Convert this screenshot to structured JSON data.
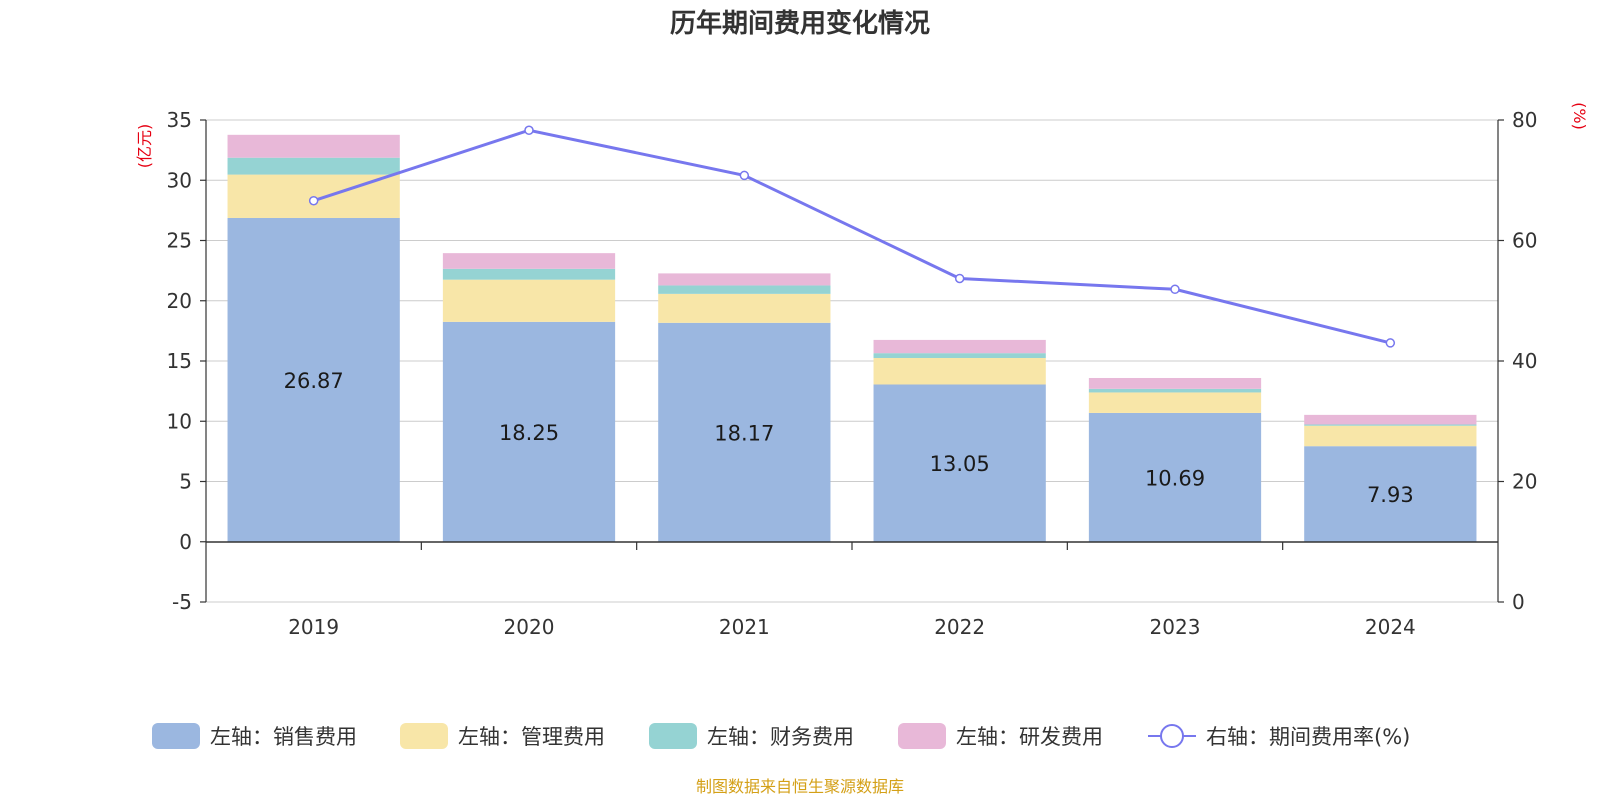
{
  "title": "历年期间费用变化情况",
  "source": "制图数据来自恒生聚源数据库",
  "chart_data": {
    "type": "bar",
    "stacked": true,
    "categories": [
      "2019",
      "2020",
      "2021",
      "2022",
      "2023",
      "2024"
    ],
    "left_axis": {
      "unit": "(亿元)",
      "min": -5,
      "max": 35,
      "ticks": [
        -5,
        0,
        5,
        10,
        15,
        20,
        25,
        30,
        35
      ]
    },
    "right_axis": {
      "unit": "(%)",
      "min": 0,
      "max": 80,
      "ticks": [
        0,
        20,
        40,
        60,
        80
      ]
    },
    "series": [
      {
        "name": "左轴：销售费用",
        "axis": "left",
        "kind": "bar",
        "color": "#9bb7e0",
        "values": [
          26.87,
          18.25,
          18.17,
          13.05,
          10.69,
          7.93
        ],
        "show_labels": true
      },
      {
        "name": "左轴：管理费用",
        "axis": "left",
        "kind": "bar",
        "color": "#f8e6a8",
        "values": [
          3.6,
          3.5,
          2.4,
          2.2,
          1.7,
          1.7
        ]
      },
      {
        "name": "左轴：财务费用",
        "axis": "left",
        "kind": "bar",
        "color": "#95d3d3",
        "values": [
          1.4,
          0.9,
          0.7,
          0.4,
          0.3,
          0.1
        ]
      },
      {
        "name": "左轴：研发费用",
        "axis": "left",
        "kind": "bar",
        "color": "#e8b8d8",
        "values": [
          1.9,
          1.3,
          1.0,
          1.1,
          0.9,
          0.8
        ]
      },
      {
        "name": "右轴：期间费用率(%)",
        "axis": "right",
        "kind": "line",
        "color": "#7777ee",
        "values": [
          66.6,
          78.3,
          70.8,
          53.7,
          51.9,
          43.0
        ]
      }
    ]
  }
}
